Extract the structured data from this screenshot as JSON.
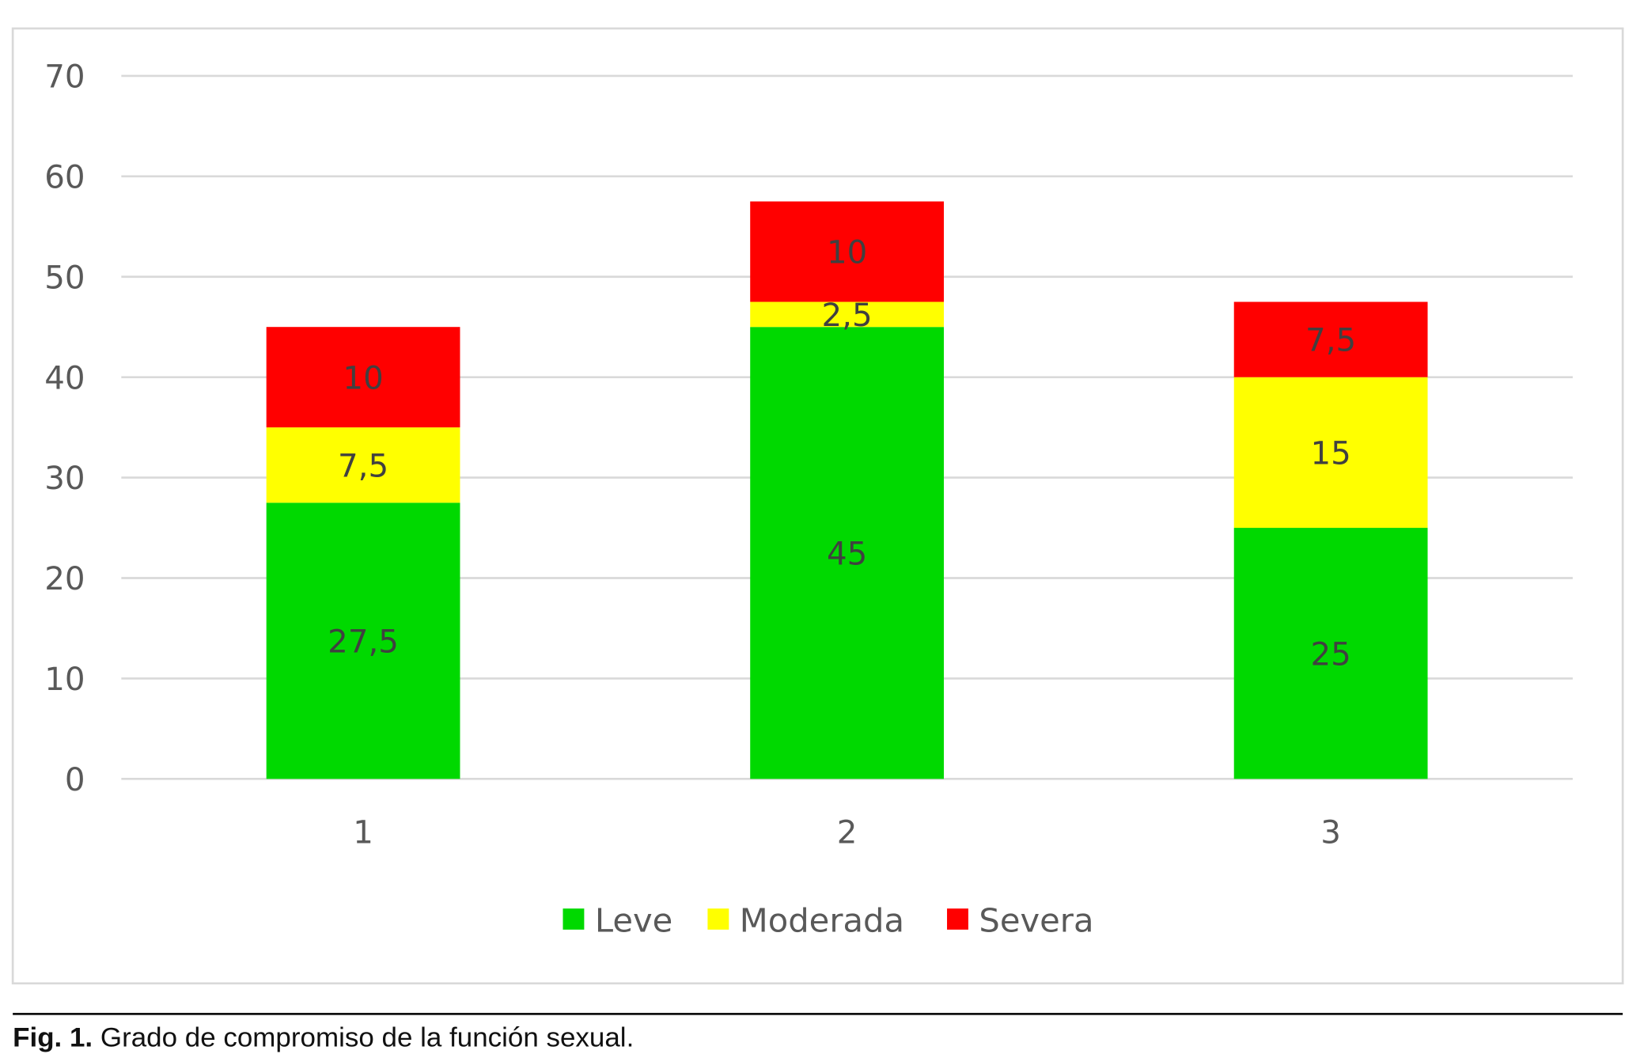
{
  "chart_data": {
    "type": "bar",
    "stacked": true,
    "categories": [
      "1",
      "2",
      "3"
    ],
    "series": [
      {
        "name": "Leve",
        "color": "#00D900",
        "values": [
          27.5,
          45,
          25
        ],
        "labels": [
          "27,5",
          "45",
          "25"
        ]
      },
      {
        "name": "Moderada",
        "color": "#FFFF00",
        "values": [
          7.5,
          2.5,
          15
        ],
        "labels": [
          "7,5",
          "2,5",
          "15"
        ]
      },
      {
        "name": "Severa",
        "color": "#FF0000",
        "values": [
          10,
          10,
          7.5
        ],
        "labels": [
          "10",
          "10",
          "7,5"
        ]
      }
    ],
    "ylim": [
      0,
      70
    ],
    "yticks": [
      "0",
      "10",
      "20",
      "30",
      "40",
      "50",
      "60",
      "70"
    ],
    "grid": true,
    "legend_position": "bottom"
  },
  "caption": {
    "label": "Fig. 1.",
    "text": "Grado de compromiso de la función sexual."
  }
}
